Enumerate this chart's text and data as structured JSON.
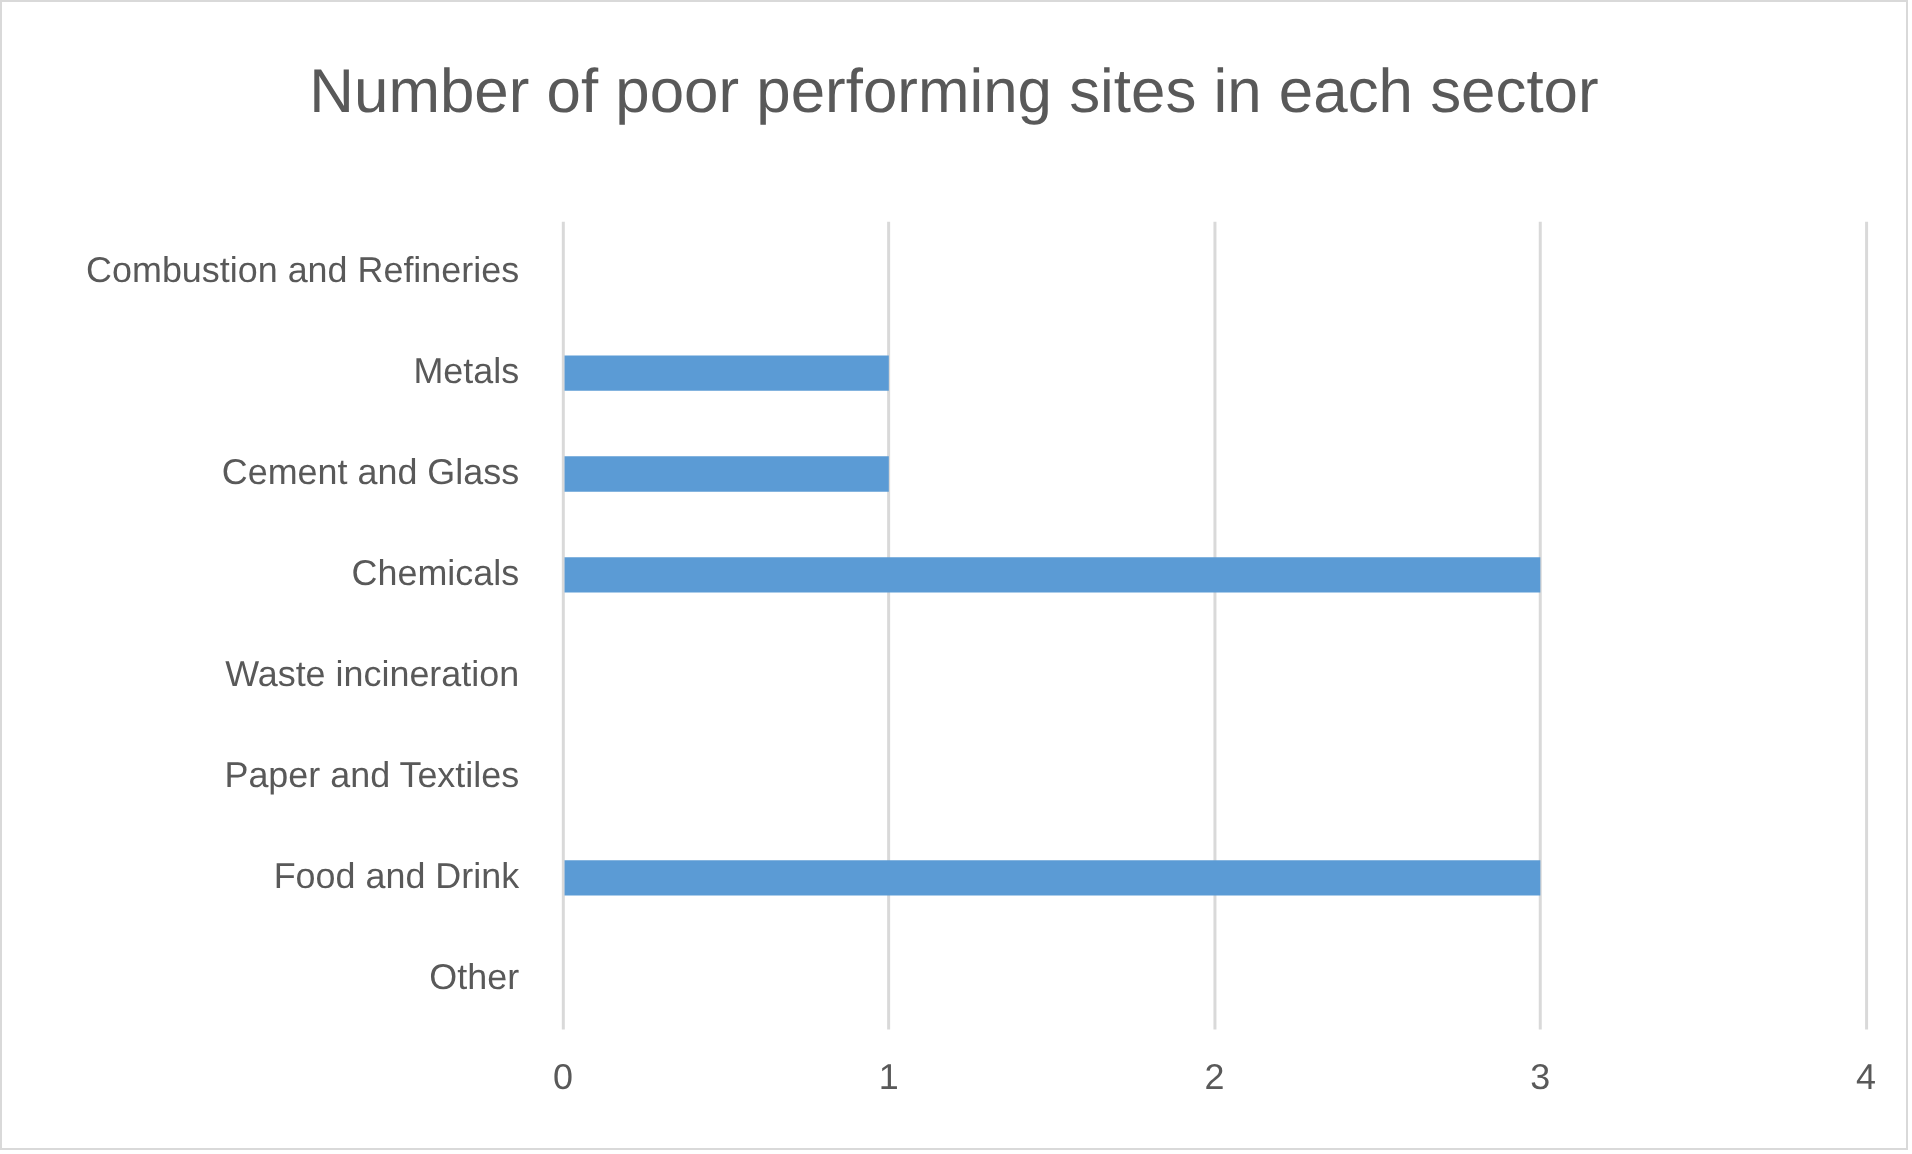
{
  "chart_data": {
    "type": "bar",
    "orientation": "horizontal",
    "title": "Number of poor performing sites in each sector",
    "categories": [
      "Combustion and Refineries",
      "Metals",
      "Cement and Glass",
      "Chemicals",
      "Waste incineration",
      "Paper and Textiles",
      "Food and Drink",
      "Other"
    ],
    "values": [
      0,
      1,
      1,
      3,
      0,
      0,
      3,
      0
    ],
    "color": "#5b9bd5",
    "xlim": [
      0,
      4
    ],
    "xticks": [
      0,
      1,
      2,
      3,
      4
    ],
    "grid": "x",
    "legend": false
  }
}
